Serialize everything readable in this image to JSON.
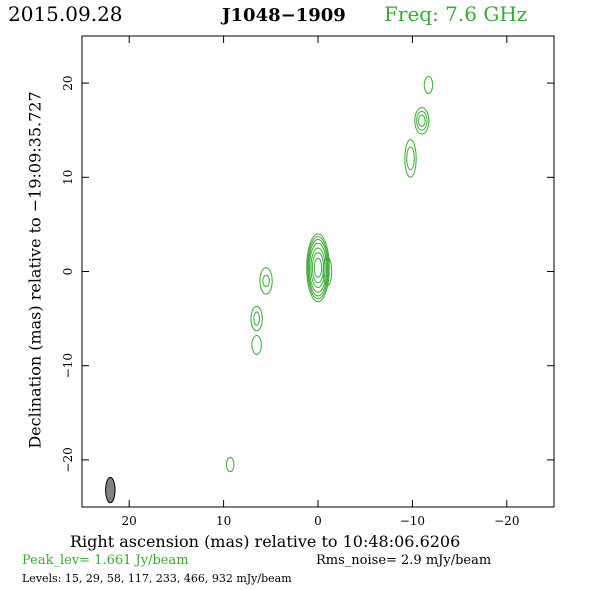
{
  "header": {
    "date": "2015.09.28",
    "source": "J1048−1909",
    "freq": "Freq: 7.6 GHz"
  },
  "footer": {
    "peak": "Peak_lev=  1.661 Jy/beam",
    "rms": "Rms_noise=   2.9 mJy/beam",
    "levels": "Levels:  15,  29,  58, 117, 233, 466, 932 mJy/beam"
  },
  "colors": {
    "contour": "#3aaa35",
    "beam_fill": "#808080",
    "axes": "#000000"
  },
  "chart_data": {
    "type": "contour",
    "xlabel": "Right ascension (mas) relative to 10:48:06.6206",
    "ylabel": "Declination (mas) relative to −19:09:35.727",
    "xlim": [
      25,
      -25
    ],
    "ylim": [
      -25,
      25
    ],
    "x_ticks": [
      20,
      10,
      0,
      -10,
      -20
    ],
    "x_tick_labels": [
      "20",
      "10",
      "0",
      "−10",
      "−20"
    ],
    "y_ticks": [
      20,
      10,
      0,
      -10,
      -20
    ],
    "y_tick_labels": [
      "20",
      "10",
      "0",
      "−10",
      "−20"
    ],
    "contour_levels_mJy": [
      15,
      29,
      58,
      117,
      233,
      466,
      932
    ],
    "peak_Jy_per_beam": 1.661,
    "rms_noise_mJy_per_beam": 2.9,
    "beam": {
      "x": 22,
      "y": -23.2,
      "major_mas": 2.7,
      "minor_mas": 1.0,
      "pa_deg": 0
    },
    "components": [
      {
        "name": "core",
        "x": 0.0,
        "y": 0.4,
        "rx": [
          1.2,
          1.1,
          1.0,
          0.9,
          0.75,
          0.6,
          0.4
        ],
        "ry": [
          3.6,
          3.3,
          3.0,
          2.6,
          2.1,
          1.6,
          1.0
        ]
      },
      {
        "name": "jet-1",
        "x": -1.0,
        "y": 0.0,
        "rx": [
          0.45
        ],
        "ry": [
          1.5
        ]
      },
      {
        "name": "knot-sw1",
        "x": 5.5,
        "y": -1.0,
        "rx": [
          0.65,
          0.35
        ],
        "ry": [
          1.4,
          0.6
        ]
      },
      {
        "name": "knot-sw2",
        "x": 6.5,
        "y": -5.0,
        "rx": [
          0.6,
          0.3
        ],
        "ry": [
          1.3,
          0.7
        ]
      },
      {
        "name": "knot-sw3",
        "x": 6.5,
        "y": -7.8,
        "rx": [
          0.5
        ],
        "ry": [
          1.0
        ]
      },
      {
        "name": "knot-far-sw",
        "x": 9.3,
        "y": -20.5,
        "rx": [
          0.4
        ],
        "ry": [
          0.75
        ]
      },
      {
        "name": "knot-ne1",
        "x": -9.8,
        "y": 12.0,
        "rx": [
          0.6,
          0.4
        ],
        "ry": [
          2.0,
          1.2
        ]
      },
      {
        "name": "knot-ne2",
        "x": -11.0,
        "y": 16.0,
        "rx": [
          0.75,
          0.55,
          0.35
        ],
        "ry": [
          1.4,
          1.0,
          0.6
        ]
      },
      {
        "name": "knot-ne3",
        "x": -11.7,
        "y": 19.8,
        "rx": [
          0.45
        ],
        "ry": [
          0.9
        ]
      }
    ]
  }
}
